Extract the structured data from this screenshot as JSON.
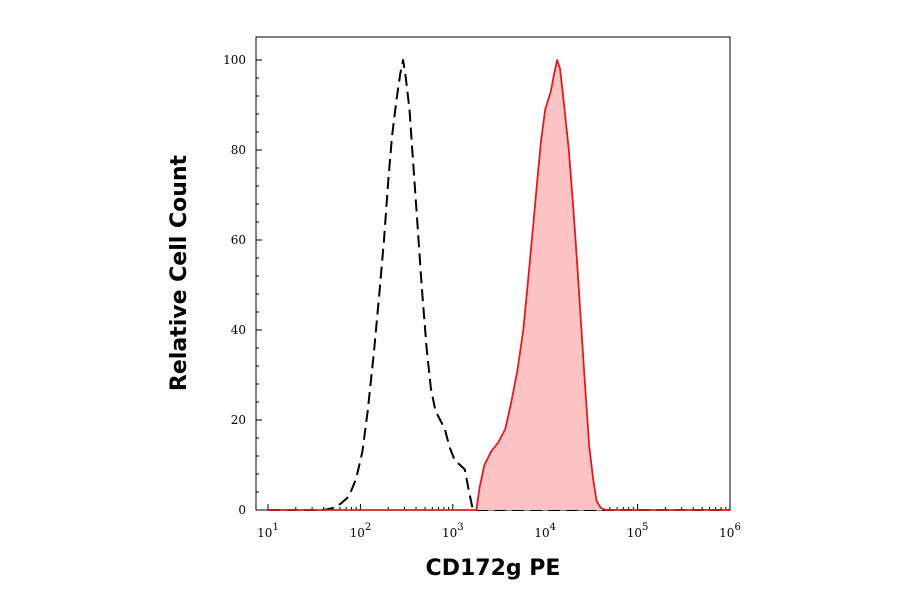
{
  "chart_data": {
    "type": "area",
    "title": "",
    "xlabel": "CD172g PE",
    "ylabel": "Relative Cell Count",
    "x_scale": "log",
    "xlim": [
      10,
      1000000
    ],
    "ylim": [
      0,
      100
    ],
    "x_ticks": [
      {
        "base": "10",
        "exp": "1",
        "value": 10
      },
      {
        "base": "10",
        "exp": "2",
        "value": 100
      },
      {
        "base": "10",
        "exp": "3",
        "value": 1000
      },
      {
        "base": "10",
        "exp": "4",
        "value": 10000
      },
      {
        "base": "10",
        "exp": "5",
        "value": 100000
      },
      {
        "base": "10",
        "exp": "6",
        "value": 1000000
      }
    ],
    "y_ticks": [
      "0",
      "20",
      "40",
      "60",
      "80",
      "100"
    ],
    "grid": false,
    "legend": "none",
    "series": [
      {
        "style": "dashed",
        "color": "#000000",
        "fill": "none",
        "points": [
          [
            10,
            0
          ],
          [
            40,
            0
          ],
          [
            52,
            0.5
          ],
          [
            62,
            1.5
          ],
          [
            75,
            3
          ],
          [
            90,
            7
          ],
          [
            105,
            13
          ],
          [
            120,
            22
          ],
          [
            140,
            35
          ],
          [
            160,
            48
          ],
          [
            180,
            60
          ],
          [
            200,
            73
          ],
          [
            220,
            83
          ],
          [
            245,
            91
          ],
          [
            270,
            97
          ],
          [
            290,
            100
          ],
          [
            310,
            96
          ],
          [
            340,
            89
          ],
          [
            370,
            78
          ],
          [
            410,
            65
          ],
          [
            460,
            50
          ],
          [
            520,
            36
          ],
          [
            580,
            27
          ],
          [
            650,
            22
          ],
          [
            730,
            20
          ],
          [
            820,
            18
          ],
          [
            920,
            14
          ],
          [
            1050,
            11
          ],
          [
            1200,
            10
          ],
          [
            1350,
            9
          ],
          [
            1500,
            4
          ],
          [
            1650,
            0
          ],
          [
            1000000,
            0
          ]
        ]
      },
      {
        "style": "solid",
        "color": "#e41a1c",
        "fill": "#fbc3c3",
        "points": [
          [
            10,
            0
          ],
          [
            1800,
            0
          ],
          [
            1950,
            5
          ],
          [
            2200,
            10
          ],
          [
            2600,
            13
          ],
          [
            3100,
            15
          ],
          [
            3700,
            18
          ],
          [
            4300,
            24
          ],
          [
            5000,
            31
          ],
          [
            5800,
            40
          ],
          [
            6600,
            52
          ],
          [
            7400,
            63
          ],
          [
            8200,
            73
          ],
          [
            9000,
            82
          ],
          [
            10000,
            89
          ],
          [
            11500,
            93
          ],
          [
            12500,
            97
          ],
          [
            13500,
            100
          ],
          [
            14500,
            98
          ],
          [
            16000,
            90
          ],
          [
            18000,
            80
          ],
          [
            20000,
            68
          ],
          [
            22000,
            56
          ],
          [
            24000,
            44
          ],
          [
            26000,
            33
          ],
          [
            28000,
            23
          ],
          [
            30000,
            14
          ],
          [
            33000,
            7
          ],
          [
            36000,
            2
          ],
          [
            40000,
            0.5
          ],
          [
            45000,
            0
          ],
          [
            1000000,
            0
          ]
        ]
      }
    ]
  }
}
